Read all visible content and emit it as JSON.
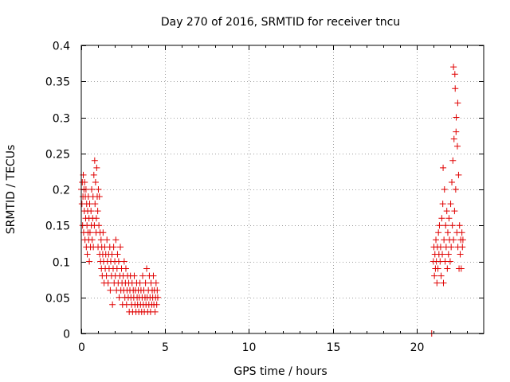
{
  "chart_data": {
    "type": "scatter",
    "title": "Day 270 of 2016, SRMTID for receiver tncu",
    "xlabel": "GPS time / hours",
    "ylabel": "SRMTID / TECUs",
    "xlim": [
      0,
      24
    ],
    "ylim": [
      0,
      0.4
    ],
    "grid": true,
    "marker": "+",
    "marker_color": "#e00000",
    "xticks": [
      0,
      5,
      10,
      15,
      20
    ],
    "xtick_labels": [
      "0",
      "5",
      "10",
      "15",
      "20"
    ],
    "yticks": [
      0,
      0.05,
      0.1,
      0.15,
      0.2,
      0.25,
      0.3,
      0.35,
      0.4
    ],
    "ytick_labels": [
      "0",
      "0.05",
      "0.1",
      "0.15",
      "0.2",
      "0.25",
      "0.3",
      "0.35",
      "0.4"
    ],
    "series": [
      {
        "name": "SRMTID",
        "points": [
          [
            0.0,
            0.2
          ],
          [
            0.04,
            0.18
          ],
          [
            0.06,
            0.21
          ],
          [
            0.08,
            0.15
          ],
          [
            0.1,
            0.19
          ],
          [
            0.12,
            0.22
          ],
          [
            0.14,
            0.14
          ],
          [
            0.16,
            0.2
          ],
          [
            0.18,
            0.17
          ],
          [
            0.2,
            0.21
          ],
          [
            0.22,
            0.13
          ],
          [
            0.24,
            0.19
          ],
          [
            0.26,
            0.16
          ],
          [
            0.28,
            0.2
          ],
          [
            0.3,
            0.12
          ],
          [
            0.32,
            0.18
          ],
          [
            0.34,
            0.15
          ],
          [
            0.36,
            0.11
          ],
          [
            0.38,
            0.17
          ],
          [
            0.4,
            0.14
          ],
          [
            0.42,
            0.19
          ],
          [
            0.44,
            0.13
          ],
          [
            0.46,
            0.16
          ],
          [
            0.48,
            0.1
          ],
          [
            0.5,
            0.18
          ],
          [
            0.52,
            0.14
          ],
          [
            0.55,
            0.12
          ],
          [
            0.58,
            0.17
          ],
          [
            0.6,
            0.15
          ],
          [
            0.62,
            0.2
          ],
          [
            0.65,
            0.13
          ],
          [
            0.68,
            0.16
          ],
          [
            0.7,
            0.19
          ],
          [
            0.72,
            0.12
          ],
          [
            0.75,
            0.22
          ],
          [
            0.78,
            0.15
          ],
          [
            0.8,
            0.24
          ],
          [
            0.82,
            0.18
          ],
          [
            0.85,
            0.21
          ],
          [
            0.88,
            0.14
          ],
          [
            0.9,
            0.16
          ],
          [
            0.92,
            0.23
          ],
          [
            0.95,
            0.19
          ],
          [
            0.98,
            0.17
          ],
          [
            1.0,
            0.12
          ],
          [
            1.02,
            0.2
          ],
          [
            1.05,
            0.15
          ],
          [
            1.08,
            0.19
          ],
          [
            1.1,
            0.11
          ],
          [
            1.12,
            0.14
          ],
          [
            1.15,
            0.1
          ],
          [
            1.18,
            0.13
          ],
          [
            1.2,
            0.09
          ],
          [
            1.22,
            0.12
          ],
          [
            1.25,
            0.08
          ],
          [
            1.28,
            0.11
          ],
          [
            1.3,
            0.14
          ],
          [
            1.33,
            0.1
          ],
          [
            1.36,
            0.07
          ],
          [
            1.4,
            0.12
          ],
          [
            1.43,
            0.09
          ],
          [
            1.46,
            0.11
          ],
          [
            1.5,
            0.08
          ],
          [
            1.53,
            0.13
          ],
          [
            1.56,
            0.1
          ],
          [
            1.6,
            0.07
          ],
          [
            1.63,
            0.11
          ],
          [
            1.66,
            0.09
          ],
          [
            1.7,
            0.12
          ],
          [
            1.73,
            0.06
          ],
          [
            1.76,
            0.1
          ],
          [
            1.8,
            0.08
          ],
          [
            1.83,
            0.11
          ],
          [
            1.86,
            0.04
          ],
          [
            1.9,
            0.09
          ],
          [
            1.93,
            0.12
          ],
          [
            1.96,
            0.07
          ],
          [
            2.0,
            0.1
          ],
          [
            2.03,
            0.08
          ],
          [
            2.06,
            0.13
          ],
          [
            2.1,
            0.06
          ],
          [
            2.13,
            0.09
          ],
          [
            2.16,
            0.11
          ],
          [
            2.2,
            0.07
          ],
          [
            2.23,
            0.1
          ],
          [
            2.26,
            0.05
          ],
          [
            2.3,
            0.08
          ],
          [
            2.33,
            0.12
          ],
          [
            2.36,
            0.06
          ],
          [
            2.4,
            0.09
          ],
          [
            2.43,
            0.07
          ],
          [
            2.46,
            0.04
          ],
          [
            2.5,
            0.08
          ],
          [
            2.53,
            0.06
          ],
          [
            2.56,
            0.1
          ],
          [
            2.6,
            0.05
          ],
          [
            2.63,
            0.07
          ],
          [
            2.66,
            0.09
          ],
          [
            2.7,
            0.04
          ],
          [
            2.73,
            0.06
          ],
          [
            2.76,
            0.08
          ],
          [
            2.8,
            0.05
          ],
          [
            2.83,
            0.07
          ],
          [
            2.86,
            0.03
          ],
          [
            2.9,
            0.06
          ],
          [
            2.93,
            0.08
          ],
          [
            2.96,
            0.05
          ],
          [
            3.0,
            0.04
          ],
          [
            3.03,
            0.07
          ],
          [
            3.06,
            0.03
          ],
          [
            3.1,
            0.06
          ],
          [
            3.13,
            0.05
          ],
          [
            3.16,
            0.08
          ],
          [
            3.2,
            0.04
          ],
          [
            3.23,
            0.06
          ],
          [
            3.26,
            0.03
          ],
          [
            3.3,
            0.07
          ],
          [
            3.33,
            0.05
          ],
          [
            3.36,
            0.04
          ],
          [
            3.4,
            0.06
          ],
          [
            3.43,
            0.03
          ],
          [
            3.46,
            0.05
          ],
          [
            3.5,
            0.07
          ],
          [
            3.53,
            0.04
          ],
          [
            3.56,
            0.06
          ],
          [
            3.6,
            0.03
          ],
          [
            3.63,
            0.05
          ],
          [
            3.66,
            0.08
          ],
          [
            3.7,
            0.04
          ],
          [
            3.73,
            0.06
          ],
          [
            3.76,
            0.03
          ],
          [
            3.8,
            0.05
          ],
          [
            3.83,
            0.07
          ],
          [
            3.86,
            0.04
          ],
          [
            3.9,
            0.09
          ],
          [
            3.93,
            0.05
          ],
          [
            3.96,
            0.03
          ],
          [
            4.0,
            0.06
          ],
          [
            4.03,
            0.04
          ],
          [
            4.06,
            0.08
          ],
          [
            4.1,
            0.05
          ],
          [
            4.13,
            0.03
          ],
          [
            4.16,
            0.07
          ],
          [
            4.2,
            0.04
          ],
          [
            4.23,
            0.06
          ],
          [
            4.26,
            0.05
          ],
          [
            4.3,
            0.08
          ],
          [
            4.33,
            0.04
          ],
          [
            4.36,
            0.06
          ],
          [
            4.4,
            0.03
          ],
          [
            4.43,
            0.05
          ],
          [
            4.46,
            0.07
          ],
          [
            4.5,
            0.04
          ],
          [
            4.53,
            0.06
          ],
          [
            4.56,
            0.05
          ],
          [
            20.9,
            0.0
          ],
          [
            21.0,
            0.1
          ],
          [
            21.03,
            0.12
          ],
          [
            21.06,
            0.08
          ],
          [
            21.09,
            0.11
          ],
          [
            21.12,
            0.09
          ],
          [
            21.15,
            0.13
          ],
          [
            21.18,
            0.1
          ],
          [
            21.21,
            0.07
          ],
          [
            21.24,
            0.12
          ],
          [
            21.27,
            0.09
          ],
          [
            21.3,
            0.14
          ],
          [
            21.33,
            0.11
          ],
          [
            21.36,
            0.15
          ],
          [
            21.4,
            0.1
          ],
          [
            21.43,
            0.12
          ],
          [
            21.46,
            0.08
          ],
          [
            21.5,
            0.16
          ],
          [
            21.53,
            0.11
          ],
          [
            21.56,
            0.18
          ],
          [
            21.6,
            0.07
          ],
          [
            21.63,
            0.13
          ],
          [
            21.66,
            0.2
          ],
          [
            21.7,
            0.1
          ],
          [
            21.73,
            0.15
          ],
          [
            21.76,
            0.12
          ],
          [
            21.8,
            0.17
          ],
          [
            21.83,
            0.09
          ],
          [
            21.86,
            0.14
          ],
          [
            21.9,
            0.11
          ],
          [
            21.93,
            0.16
          ],
          [
            21.96,
            0.13
          ],
          [
            22.0,
            0.1
          ],
          [
            22.03,
            0.18
          ],
          [
            22.06,
            0.12
          ],
          [
            22.1,
            0.21
          ],
          [
            22.13,
            0.15
          ],
          [
            22.16,
            0.24
          ],
          [
            22.2,
            0.13
          ],
          [
            22.23,
            0.27
          ],
          [
            22.26,
            0.17
          ],
          [
            22.3,
            0.34
          ],
          [
            22.33,
            0.2
          ],
          [
            22.36,
            0.3
          ],
          [
            22.4,
            0.14
          ],
          [
            22.43,
            0.26
          ],
          [
            22.46,
            0.12
          ],
          [
            22.5,
            0.22
          ],
          [
            22.53,
            0.09
          ],
          [
            22.56,
            0.15
          ],
          [
            22.6,
            0.11
          ],
          [
            22.63,
            0.13
          ],
          [
            22.66,
            0.09
          ],
          [
            22.7,
            0.14
          ],
          [
            22.73,
            0.12
          ],
          [
            22.76,
            0.13
          ],
          [
            22.2,
            0.37
          ],
          [
            22.28,
            0.36
          ],
          [
            22.45,
            0.32
          ],
          [
            22.35,
            0.28
          ],
          [
            21.58,
            0.23
          ]
        ]
      }
    ]
  }
}
